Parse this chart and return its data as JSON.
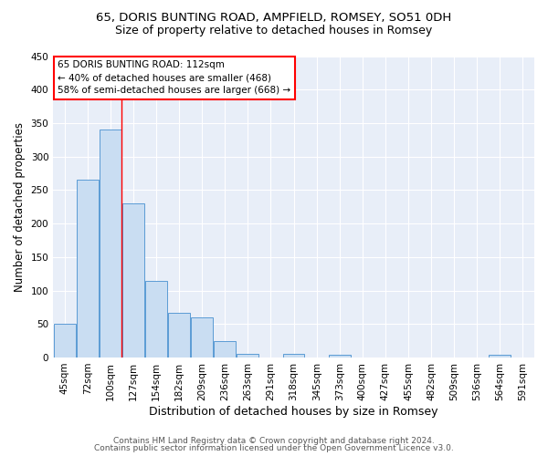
{
  "title1": "65, DORIS BUNTING ROAD, AMPFIELD, ROMSEY, SO51 0DH",
  "title2": "Size of property relative to detached houses in Romsey",
  "xlabel": "Distribution of detached houses by size in Romsey",
  "ylabel": "Number of detached properties",
  "categories": [
    "45sqm",
    "72sqm",
    "100sqm",
    "127sqm",
    "154sqm",
    "182sqm",
    "209sqm",
    "236sqm",
    "263sqm",
    "291sqm",
    "318sqm",
    "345sqm",
    "373sqm",
    "400sqm",
    "427sqm",
    "455sqm",
    "482sqm",
    "509sqm",
    "536sqm",
    "564sqm",
    "591sqm"
  ],
  "values": [
    50,
    265,
    340,
    230,
    115,
    67,
    60,
    25,
    6,
    0,
    5,
    0,
    4,
    0,
    0,
    0,
    0,
    0,
    0,
    4,
    0
  ],
  "bar_color": "#c9ddf2",
  "bar_edge_color": "#5b9bd5",
  "red_line_x": 2.5,
  "annotation_line1": "65 DORIS BUNTING ROAD: 112sqm",
  "annotation_line2": "← 40% of detached houses are smaller (468)",
  "annotation_line3": "58% of semi-detached houses are larger (668) →",
  "footer1": "Contains HM Land Registry data © Crown copyright and database right 2024.",
  "footer2": "Contains public sector information licensed under the Open Government Licence v3.0.",
  "bg_color": "#e8eef8",
  "ylim": [
    0,
    450
  ],
  "yticks": [
    0,
    50,
    100,
    150,
    200,
    250,
    300,
    350,
    400,
    450
  ],
  "title1_fontsize": 9.5,
  "title2_fontsize": 9,
  "xlabel_fontsize": 9,
  "ylabel_fontsize": 8.5,
  "tick_fontsize": 7.5,
  "annotation_fontsize": 7.5,
  "footer_fontsize": 6.5
}
